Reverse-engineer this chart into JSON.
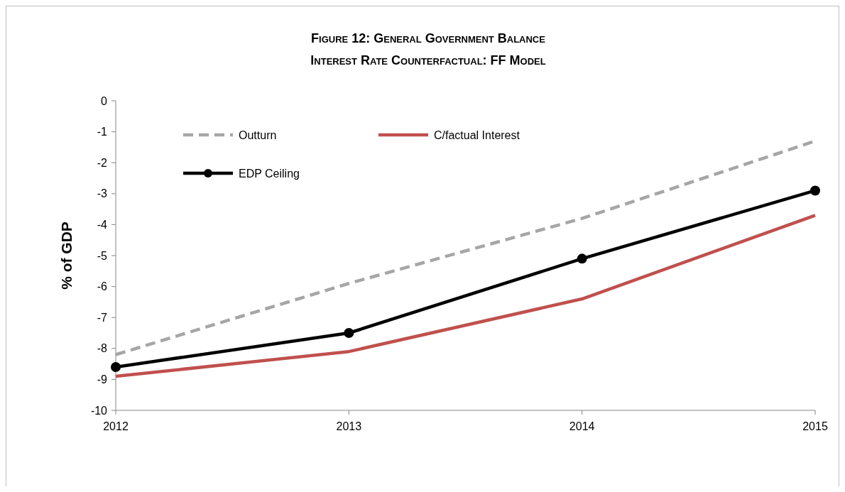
{
  "chart_data": {
    "type": "line",
    "title": "Figure 12: General Government  Balance",
    "subtitle": "Interest Rate Counterfactual: FF Model",
    "ylabel": "% of GDP",
    "x": [
      2012,
      2013,
      2014,
      2015
    ],
    "xlim": [
      2012,
      2015
    ],
    "xticks": [
      2012,
      2013,
      2014,
      2015
    ],
    "ylim": [
      -10,
      0
    ],
    "yticks": [
      -10,
      -9,
      -8,
      -7,
      -6,
      -5,
      -4,
      -3,
      -2,
      -1,
      0
    ],
    "grid": false,
    "legend": "top left",
    "series": [
      {
        "name": "Outturn",
        "color": "#a6a6a6",
        "line_style": "dashed",
        "marker": "none",
        "values": [
          -8.2,
          -5.9,
          -3.8,
          -1.3
        ]
      },
      {
        "name": "C/factual Interest",
        "color": "#c0504d",
        "line_style": "solid",
        "marker": "none",
        "values": [
          -8.9,
          -8.1,
          -6.4,
          -3.7
        ]
      },
      {
        "name": "EDP Ceiling",
        "color": "#000000",
        "line_style": "solid",
        "marker": "circle",
        "values": [
          -8.6,
          -7.5,
          -5.1,
          -2.9
        ]
      }
    ]
  }
}
